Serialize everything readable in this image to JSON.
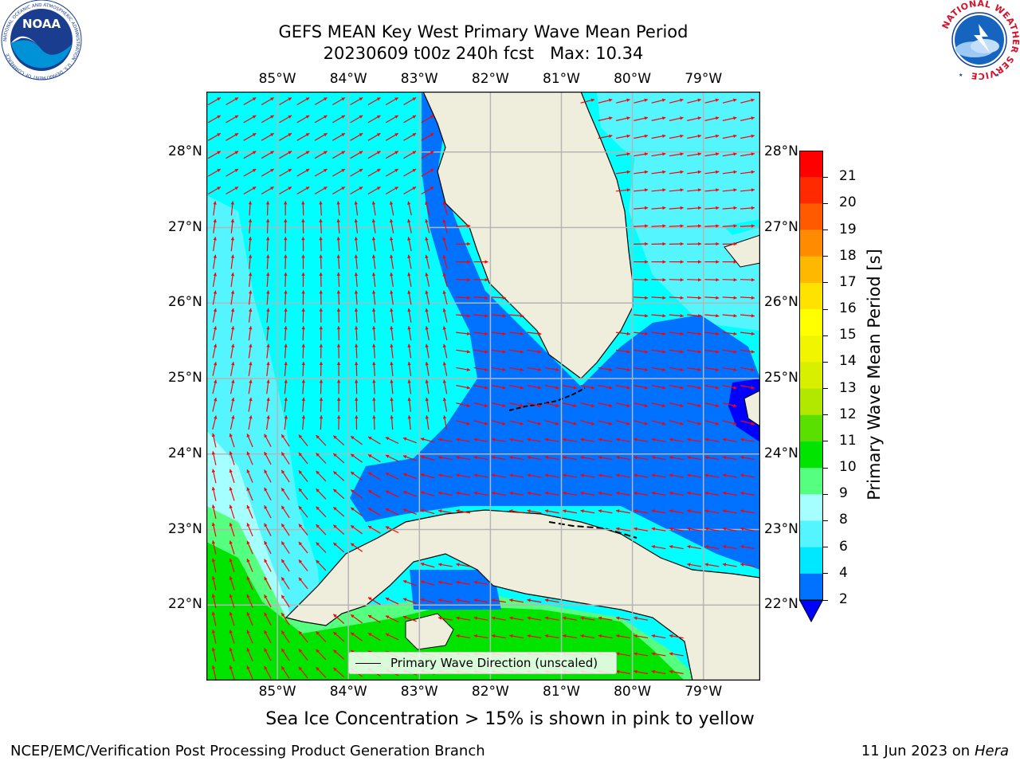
{
  "title": {
    "line1": "GEFS MEAN Key West Primary Wave Mean Period",
    "line2": "20230609 t00z 240h fcst   Max: 10.34"
  },
  "map": {
    "lon_labels": [
      "85°W",
      "84°W",
      "83°W",
      "82°W",
      "81°W",
      "80°W",
      "79°W"
    ],
    "lat_labels": [
      "28°N",
      "27°N",
      "26°N",
      "25°N",
      "24°N",
      "23°N",
      "22°N"
    ],
    "extent": {
      "lon_min": -86.0,
      "lon_max": -78.2,
      "lat_min": 21.0,
      "lat_max": 28.8
    },
    "colors": {
      "land": "#efeedd",
      "land_stroke": "#000000",
      "grid": "#b5b5b5",
      "arrow": "#ff0000"
    },
    "legend_label": "Primary Wave Direction (unscaled)"
  },
  "colorbar": {
    "title": "Primary Wave Mean Period [s]",
    "tick_labels": [
      "2",
      "4",
      "6",
      "8",
      "9",
      "10",
      "11",
      "12",
      "13",
      "14",
      "15",
      "16",
      "17",
      "18",
      "19",
      "20",
      "21"
    ],
    "bin_colors": [
      "#0072ff",
      "#00e8ff",
      "#55f5ff",
      "#a5ffff",
      "#55ff80",
      "#00e400",
      "#5ae000",
      "#b2e800",
      "#d8ef00",
      "#f1f500",
      "#ffff00",
      "#ffe200",
      "#ffb800",
      "#ff8c00",
      "#ff5a00",
      "#ff2a00",
      "#ff0000"
    ],
    "under_color": "#0000ff"
  },
  "caption": "Sea Ice Concentration > 15% is shown in pink to yellow",
  "footer": {
    "left": "NCEP/EMC/Verification Post Processing Product Generation Branch",
    "date": "11 Jun 2023 on",
    "host": "Hera"
  },
  "logos": {
    "noaa_text": "NOAA",
    "noaa_ring": "NATIONAL OCEANIC AND ATMOSPHERIC ADMINISTRATION · U.S. DEPARTMENT OF COMMERCE",
    "nws_ring": "NATIONAL WEATHER SERVICE"
  }
}
